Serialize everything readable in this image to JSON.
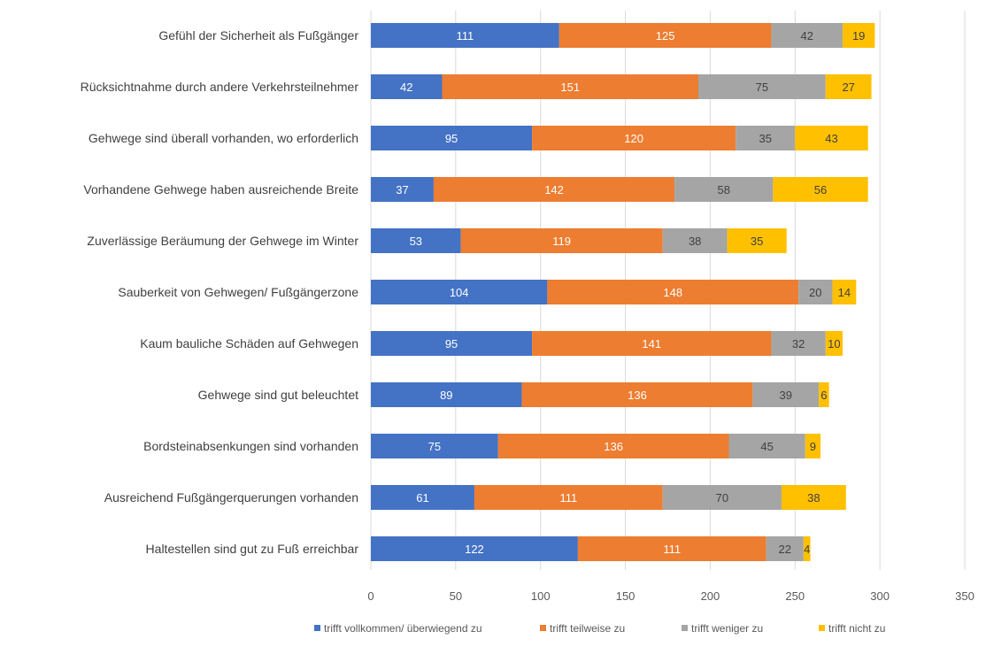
{
  "colors": {
    "series": [
      "#4472C4",
      "#ED7D31",
      "#A5A5A5",
      "#FFC000"
    ],
    "label_on_dark": "#ffffff",
    "label_on_light": "#404040",
    "grid": "#d9d9d9",
    "axis_text": "#595959",
    "category_text": "#404040"
  },
  "chart_data": {
    "type": "bar",
    "orientation": "horizontal",
    "stacked": true,
    "title": "",
    "xlabel": "",
    "ylabel": "",
    "xlim": [
      0,
      350
    ],
    "xticks": [
      0,
      50,
      100,
      150,
      200,
      250,
      300,
      350
    ],
    "grid": true,
    "legend_position": "bottom",
    "categories": [
      "Gefühl der Sicherheit als Fußgänger",
      "Rücksichtnahme durch andere Verkehrsteilnehmer",
      "Gehwege sind überall vorhanden, wo erforderlich",
      "Vorhandene Gehwege haben ausreichende Breite",
      "Zuverlässige Beräumung der Gehwege im Winter",
      "Sauberkeit von Gehwegen/ Fußgängerzone",
      "Kaum bauliche Schäden auf Gehwegen",
      "Gehwege sind gut beleuchtet",
      "Bordsteinabsenkungen sind vorhanden",
      "Ausreichend Fußgängerquerungen vorhanden",
      "Haltestellen sind gut zu Fuß erreichbar"
    ],
    "series": [
      {
        "name": "trifft vollkommen/ überwiegend zu",
        "values": [
          111,
          42,
          95,
          37,
          53,
          104,
          95,
          89,
          75,
          61,
          122
        ]
      },
      {
        "name": "trifft teilweise zu",
        "values": [
          125,
          151,
          120,
          142,
          119,
          148,
          141,
          136,
          136,
          111,
          111
        ]
      },
      {
        "name": "trifft weniger zu",
        "values": [
          42,
          75,
          35,
          58,
          38,
          20,
          32,
          39,
          45,
          70,
          22
        ]
      },
      {
        "name": "trifft nicht zu",
        "values": [
          19,
          27,
          43,
          56,
          35,
          14,
          10,
          6,
          9,
          38,
          4
        ]
      }
    ]
  }
}
